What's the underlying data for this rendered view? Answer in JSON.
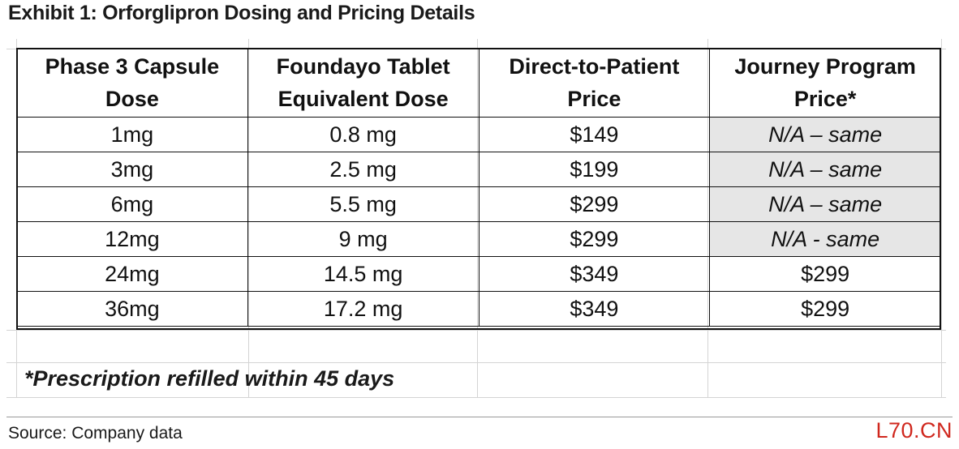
{
  "title": "Exhibit 1: Orforglipron Dosing and Pricing Details",
  "table": {
    "headers": [
      "Phase 3 Capsule Dose",
      "Foundayo Tablet Equivalent Dose",
      "Direct-to-Patient Price",
      "Journey Program Price*"
    ],
    "rows": [
      [
        "1mg",
        "0.8 mg",
        "$149",
        "N/A – same"
      ],
      [
        "3mg",
        "2.5 mg",
        "$199",
        "N/A – same"
      ],
      [
        "6mg",
        "5.5 mg",
        "$299",
        "N/A – same"
      ],
      [
        "12mg",
        "9 mg",
        "$299",
        "N/A - same"
      ],
      [
        "24mg",
        "14.5 mg",
        "$349",
        "$299"
      ],
      [
        "36mg",
        "17.2 mg",
        "$349",
        "$299"
      ]
    ]
  },
  "footnote": "*Prescription refilled within 45 days",
  "source": "Source: Company data",
  "logo_text": "L70.CN",
  "colors": {
    "logo": "#d0281e",
    "na_fill": "#e6e6e6"
  }
}
